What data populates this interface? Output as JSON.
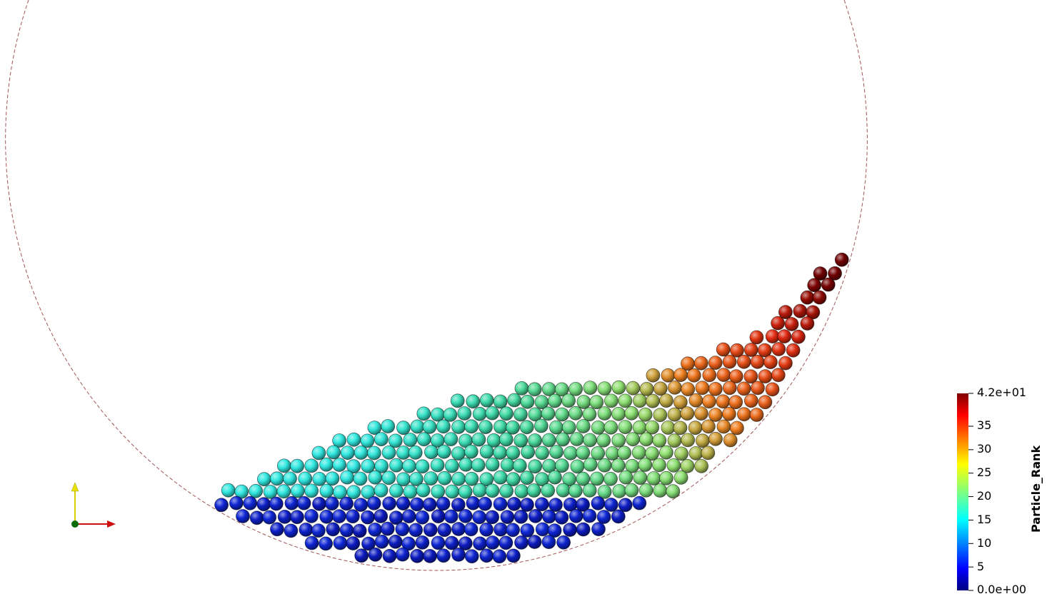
{
  "scene": {
    "background": "#ffffff",
    "drum_outline_color": "#8a2a2a",
    "particle_bands": [
      {
        "color": "#0a1aa6"
      },
      {
        "color": "#36d8c0"
      },
      {
        "color": "#8ce07a"
      },
      {
        "color": "#f07020"
      },
      {
        "color": "#d02010"
      },
      {
        "color": "#7a0000"
      }
    ]
  },
  "color_bar": {
    "title": "Particle_Rank",
    "max_label": "4.2e+01",
    "min_label": "0.0e+00",
    "tick_labels": [
      "35",
      "30",
      "25",
      "20",
      "15",
      "10",
      "5"
    ],
    "tick_values": [
      35,
      30,
      25,
      20,
      15,
      10,
      5
    ],
    "range": [
      0,
      42
    ],
    "colormap": [
      "#00007f",
      "#0000ff",
      "#00ffff",
      "#7fff7f",
      "#ffff00",
      "#ff0000",
      "#7f0000"
    ]
  },
  "orientation_axes": {
    "x_color": "#d01010",
    "y_color": "#e8e000",
    "origin_color": "#0a6a0a"
  }
}
